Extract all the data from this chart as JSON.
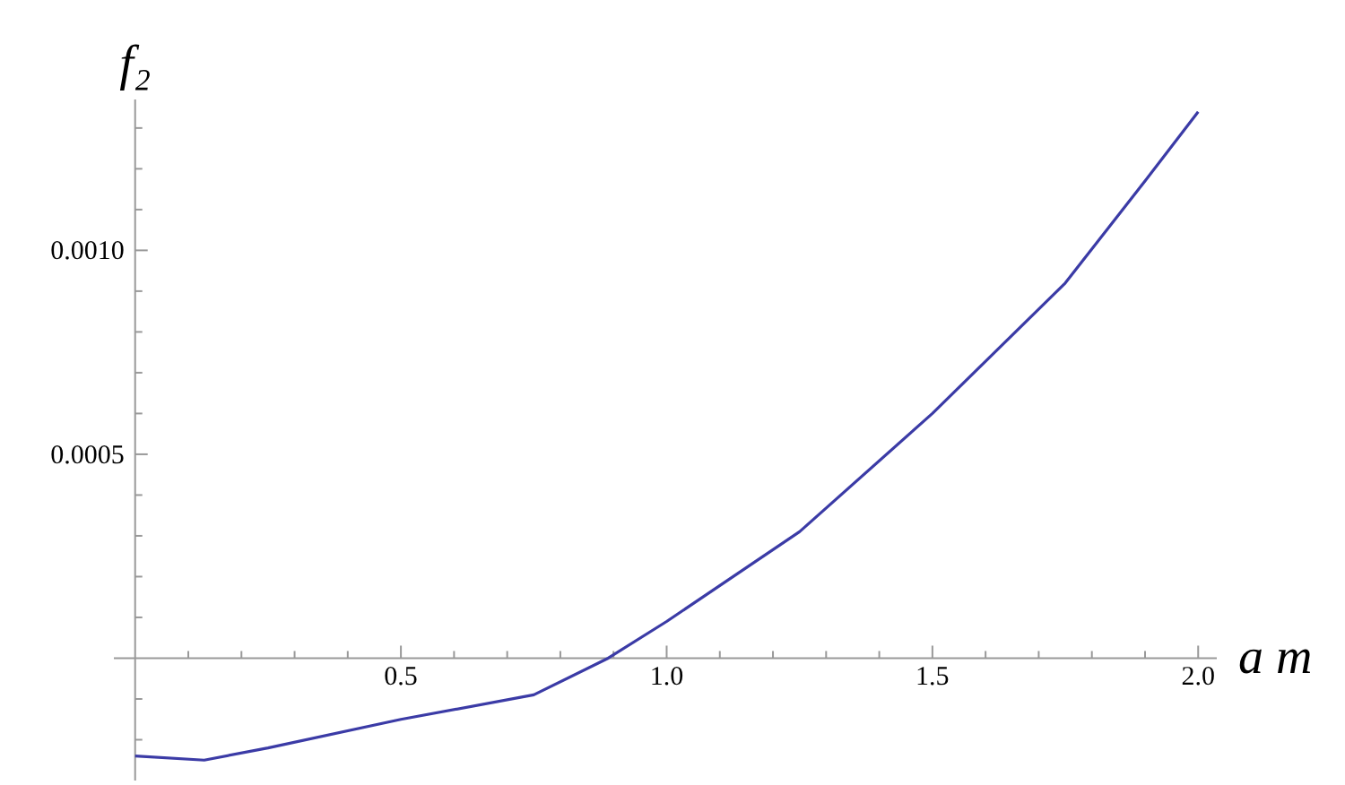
{
  "chart_data": {
    "type": "line",
    "xlabel": "a m",
    "ylabel": "f₂",
    "x": [
      0,
      0.13,
      0.25,
      0.5,
      0.75,
      0.89,
      1.0,
      1.25,
      1.5,
      1.75,
      1.9,
      2.0
    ],
    "series": [
      {
        "color": "#3b3ba6",
        "values": [
          -0.00024,
          -0.00025,
          -0.00022,
          -0.00015,
          -9e-05,
          0,
          9e-05,
          0.00031,
          0.0006,
          0.00092,
          0.00117,
          0.00134
        ]
      }
    ],
    "xlim": [
      -0.04,
      2.035
    ],
    "ylim": [
      -0.0003,
      0.00137
    ],
    "xticks": [
      {
        "value": 0.1,
        "label": null
      },
      {
        "value": 0.2,
        "label": null
      },
      {
        "value": 0.3,
        "label": null
      },
      {
        "value": 0.4,
        "label": null
      },
      0.5,
      {
        "value": 0.6,
        "label": null
      },
      {
        "value": 0.7,
        "label": null
      },
      {
        "value": 0.8,
        "label": null
      },
      {
        "value": 0.9,
        "label": null
      },
      {
        "value": 1.0,
        "label": "1.0"
      },
      {
        "value": 1.1,
        "label": null
      },
      {
        "value": 1.2,
        "label": null
      },
      {
        "value": 1.3,
        "label": null
      },
      {
        "value": 1.4,
        "label": null
      },
      1.5,
      {
        "value": 1.6,
        "label": null
      },
      {
        "value": 1.7,
        "label": null
      },
      {
        "value": 1.8,
        "label": null
      },
      {
        "value": 1.9,
        "label": null
      },
      {
        "value": 2.0,
        "label": "2.0"
      }
    ],
    "yticks": [
      {
        "value": -0.0002,
        "label": null
      },
      {
        "value": -0.0001,
        "label": null
      },
      {
        "value": 0.0001,
        "label": null
      },
      {
        "value": 0.0002,
        "label": null
      },
      {
        "value": 0.0003,
        "label": null
      },
      {
        "value": 0.0004,
        "label": null
      },
      0.0005,
      {
        "value": 0.0006,
        "label": null
      },
      {
        "value": 0.0007,
        "label": null
      },
      {
        "value": 0.0008,
        "label": null
      },
      {
        "value": 0.0009,
        "label": null
      },
      {
        "value": 0.001,
        "label": "0.0010"
      },
      {
        "value": 0.0011,
        "label": null
      },
      {
        "value": 0.0012,
        "label": null
      },
      {
        "value": 0.0013,
        "label": null
      }
    ],
    "grid": false,
    "marker": "none",
    "line_style": "solid"
  }
}
